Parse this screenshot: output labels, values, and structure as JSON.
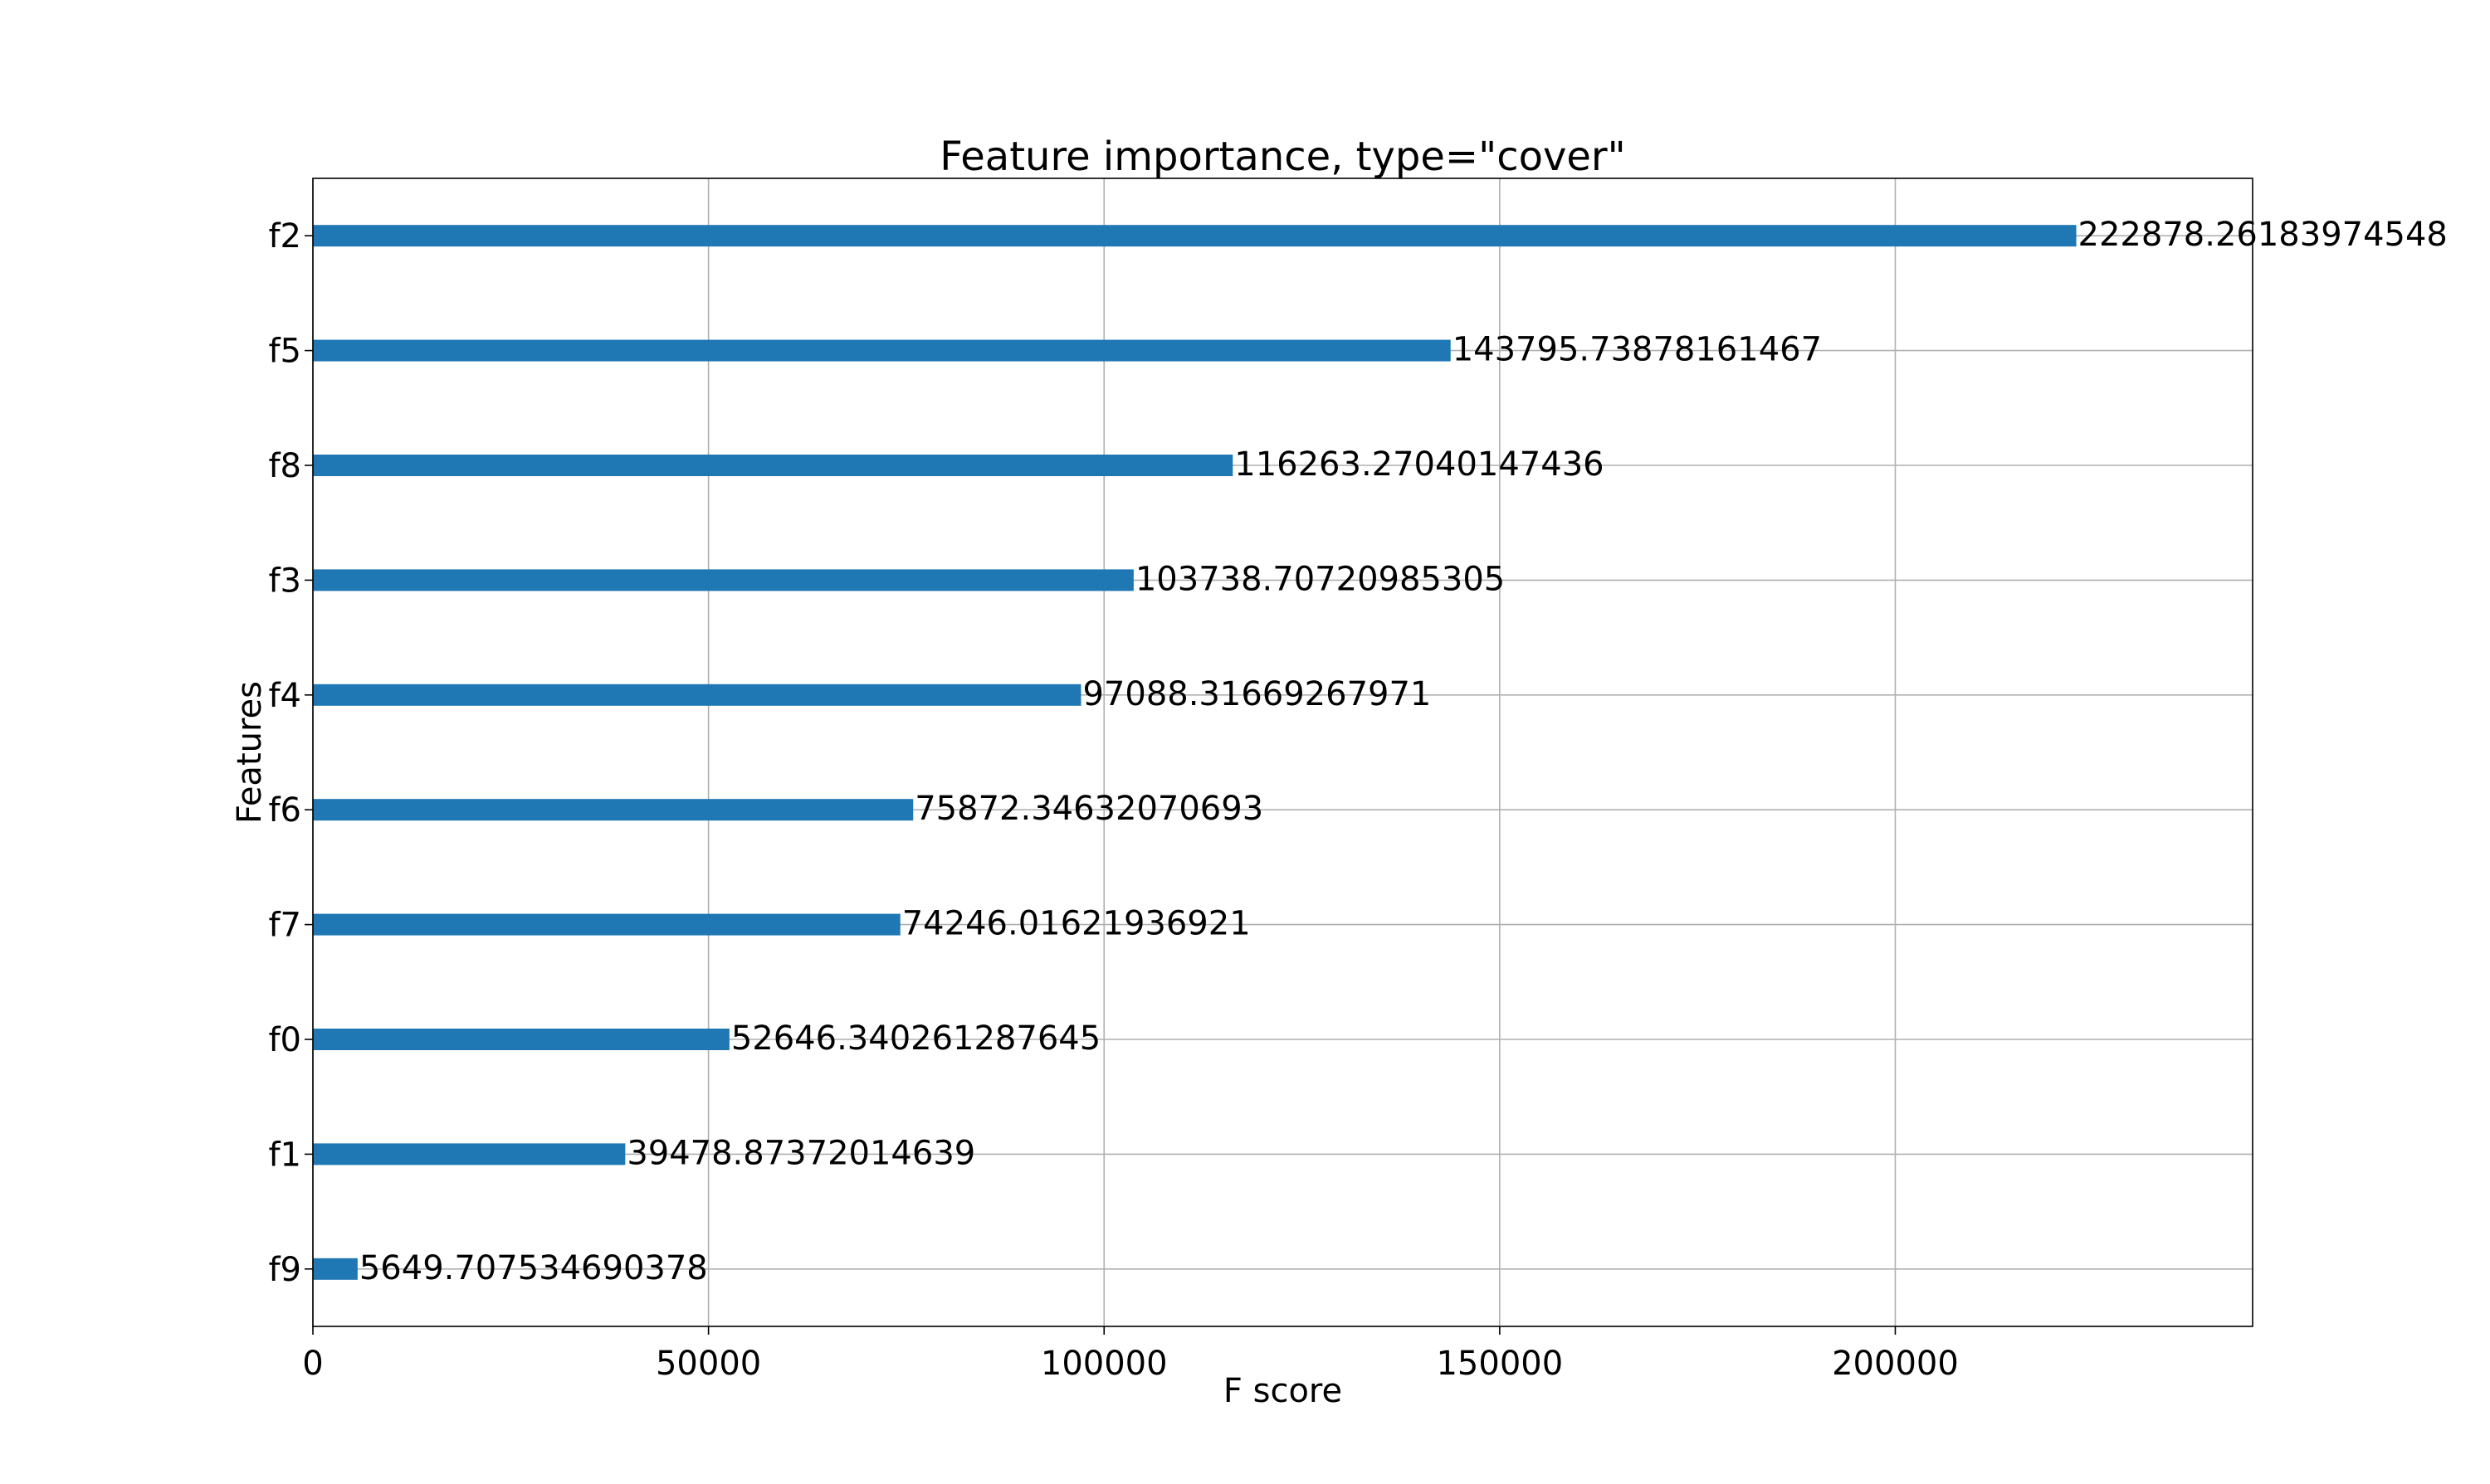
{
  "chart_data": {
    "type": "bar",
    "orientation": "horizontal",
    "title": "Feature importance, type=\"cover\"",
    "xlabel": "F score",
    "ylabel": "Features",
    "categories": [
      "f9",
      "f1",
      "f0",
      "f7",
      "f6",
      "f4",
      "f3",
      "f8",
      "f5",
      "f2"
    ],
    "values": [
      5649.707534690378,
      39478.87372014639,
      52646.340261287645,
      74246.01621936921,
      75872.34632070693,
      97088.31669267971,
      103738.70720985305,
      116263.27040147436,
      143795.73878161467,
      222878.26183974548
    ],
    "data_labels": [
      "5649.707534690378",
      "39478.87372014639",
      "52646.340261287645",
      "74246.01621936921",
      "75872.34632070693",
      "97088.31669267971",
      "103738.70720985305",
      "116263.27040147436",
      "143795.73878161467",
      "222878.26183974548"
    ],
    "xticks": [
      0,
      50000,
      100000,
      150000,
      200000
    ],
    "xtick_labels": [
      "0",
      "50000",
      "100000",
      "150000",
      "200000"
    ],
    "xlim": [
      0,
      245166
    ],
    "grid": true,
    "bar_color": "#1f77b4"
  }
}
